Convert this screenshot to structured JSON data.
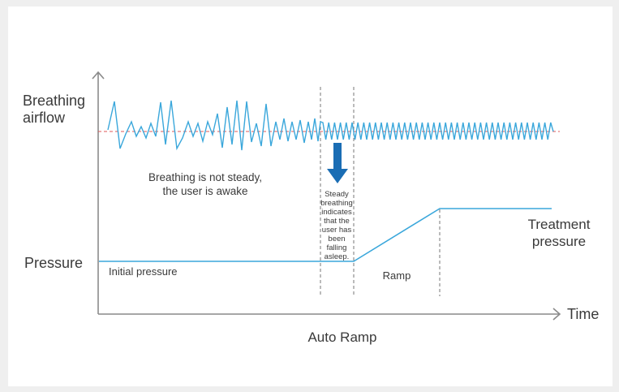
{
  "labels": {
    "y_top_line1": "Breathing",
    "y_top_line2": "airflow",
    "y_pressure": "Pressure",
    "x_axis": "Time",
    "caption": "Auto Ramp",
    "awake_line1": "Breathing is not steady,",
    "awake_line2": "the user is awake",
    "steady_lines": [
      "Steady",
      "breathing",
      "indicates",
      "that the",
      "user has",
      "been",
      "falling",
      "asleep."
    ],
    "initial_pressure": "Initial pressure",
    "ramp": "Ramp",
    "treatment_line1": "Treatment",
    "treatment_line2": "pressure"
  },
  "colors": {
    "wave": "#3aa7db",
    "baseline": "#e05a5a",
    "arrow": "#1a6db4",
    "axis": "#8a8a8a",
    "dashed": "#777777",
    "text": "#3a3a3a"
  }
}
